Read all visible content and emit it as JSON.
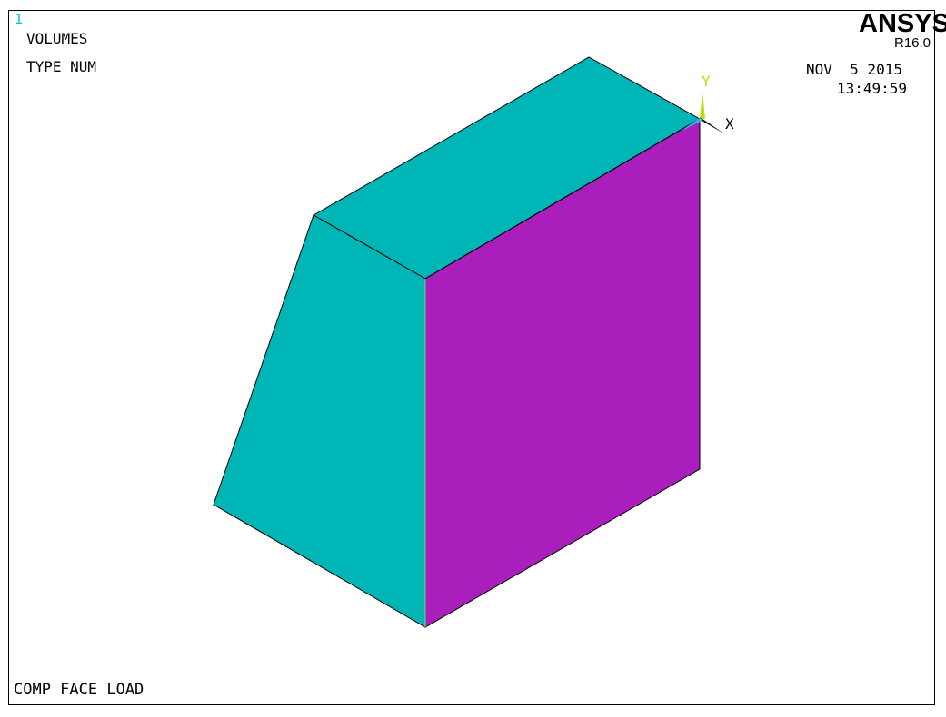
{
  "window_number": "1",
  "plot_title": "VOLUMES",
  "plot_subtitle": "TYPE NUM",
  "brand": {
    "name": "ANSYS",
    "release": "R16.0"
  },
  "date": "NOV  5 2015",
  "time": "13:49:59",
  "axis_labels": {
    "x": "X",
    "y": "Y"
  },
  "bottom_label": "COMP FACE LOAD",
  "colors": {
    "window_number": "#00cccc",
    "volume_a": "#00b5b5",
    "volume_b": "#aa1fbb",
    "y_axis": "#b8e000",
    "x_axis": "#000000",
    "edges": "#000000"
  }
}
